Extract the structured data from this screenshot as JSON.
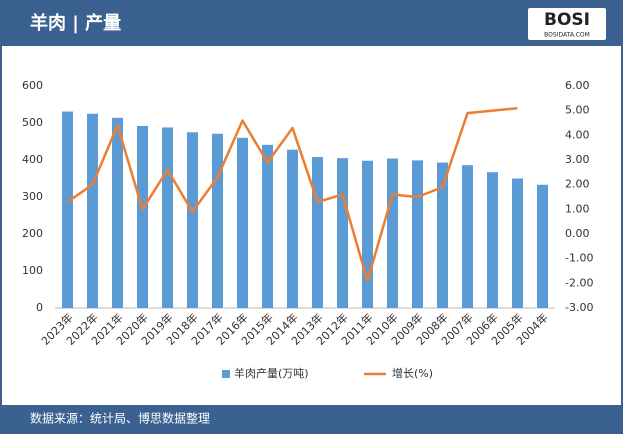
{
  "chart_data": {
    "type": "bar_line",
    "title": "羊肉 | 产量",
    "logo_text": "BOSI",
    "logo_url": "BOSIDATA.COM",
    "source": "数据来源：统计局、博思数据整理",
    "categories": [
      "2023年",
      "2022年",
      "2021年",
      "2020年",
      "2019年",
      "2018年",
      "2017年",
      "2016年",
      "2015年",
      "2014年",
      "2013年",
      "2012年",
      "2011年",
      "2010年",
      "2009年",
      "2008年",
      "2007年",
      "2006年",
      "2005年",
      "2004年"
    ],
    "series": [
      {
        "name": "羊肉产量(万吨)",
        "type": "bar",
        "color": "#5b9bd5",
        "values": [
          531,
          525,
          514,
          492,
          488,
          475,
          471,
          460,
          441,
          428,
          408,
          405,
          398,
          404,
          399,
          393,
          386,
          367,
          350,
          333
        ]
      },
      {
        "name": "增长(%)",
        "type": "line",
        "axis": "y2",
        "color": "#ed7d31",
        "values": [
          1.3,
          2.0,
          4.4,
          1.0,
          2.6,
          0.9,
          2.3,
          4.6,
          2.9,
          4.3,
          1.3,
          1.6,
          -1.9,
          1.6,
          1.5,
          1.9,
          4.9,
          5.0,
          5.1,
          null
        ]
      }
    ],
    "ylim": [
      0,
      600
    ],
    "yticks": [
      0,
      100,
      200,
      300,
      400,
      500,
      600
    ],
    "y2lim": [
      -3,
      6
    ],
    "y2ticks": [
      {
        "value": 6,
        "label": "6.00"
      },
      {
        "value": 5,
        "label": "5.00"
      },
      {
        "value": 4,
        "label": "4.00"
      },
      {
        "value": 3,
        "label": "3.00"
      },
      {
        "value": 2,
        "label": "2.00"
      },
      {
        "value": 1,
        "label": "1.00"
      },
      {
        "value": 0,
        "label": "0.00"
      },
      {
        "value": -1,
        "label": "-1.00"
      },
      {
        "value": -2,
        "label": "-2.00"
      },
      {
        "value": -3,
        "label": "-3.00"
      }
    ],
    "grid": false,
    "legend": "bottom"
  }
}
